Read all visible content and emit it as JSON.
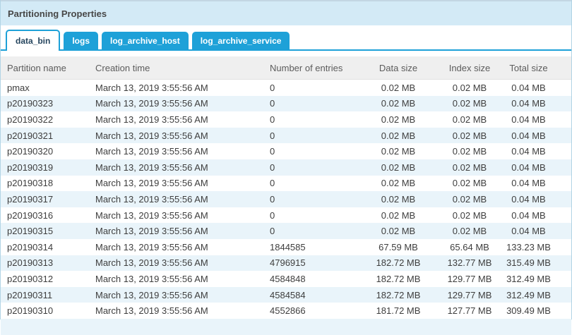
{
  "panel": {
    "title": "Partitioning Properties"
  },
  "tabs": [
    {
      "label": "data_bin",
      "active": true
    },
    {
      "label": "logs",
      "active": false
    },
    {
      "label": "log_archive_host",
      "active": false
    },
    {
      "label": "log_archive_service",
      "active": false
    }
  ],
  "table": {
    "columns": [
      "Partition name",
      "Creation time",
      "Number of entries",
      "Data size",
      "Index size",
      "Total size"
    ],
    "rows": [
      [
        "pmax",
        "March 13, 2019 3:55:56 AM",
        "0",
        "0.02 MB",
        "0.02 MB",
        "0.04 MB"
      ],
      [
        "p20190323",
        "March 13, 2019 3:55:56 AM",
        "0",
        "0.02 MB",
        "0.02 MB",
        "0.04 MB"
      ],
      [
        "p20190322",
        "March 13, 2019 3:55:56 AM",
        "0",
        "0.02 MB",
        "0.02 MB",
        "0.04 MB"
      ],
      [
        "p20190321",
        "March 13, 2019 3:55:56 AM",
        "0",
        "0.02 MB",
        "0.02 MB",
        "0.04 MB"
      ],
      [
        "p20190320",
        "March 13, 2019 3:55:56 AM",
        "0",
        "0.02 MB",
        "0.02 MB",
        "0.04 MB"
      ],
      [
        "p20190319",
        "March 13, 2019 3:55:56 AM",
        "0",
        "0.02 MB",
        "0.02 MB",
        "0.04 MB"
      ],
      [
        "p20190318",
        "March 13, 2019 3:55:56 AM",
        "0",
        "0.02 MB",
        "0.02 MB",
        "0.04 MB"
      ],
      [
        "p20190317",
        "March 13, 2019 3:55:56 AM",
        "0",
        "0.02 MB",
        "0.02 MB",
        "0.04 MB"
      ],
      [
        "p20190316",
        "March 13, 2019 3:55:56 AM",
        "0",
        "0.02 MB",
        "0.02 MB",
        "0.04 MB"
      ],
      [
        "p20190315",
        "March 13, 2019 3:55:56 AM",
        "0",
        "0.02 MB",
        "0.02 MB",
        "0.04 MB"
      ],
      [
        "p20190314",
        "March 13, 2019 3:55:56 AM",
        "1844585",
        "67.59 MB",
        "65.64 MB",
        "133.23 MB"
      ],
      [
        "p20190313",
        "March 13, 2019 3:55:56 AM",
        "4796915",
        "182.72 MB",
        "132.77 MB",
        "315.49 MB"
      ],
      [
        "p20190312",
        "March 13, 2019 3:55:56 AM",
        "4584848",
        "182.72 MB",
        "129.77 MB",
        "312.49 MB"
      ],
      [
        "p20190311",
        "March 13, 2019 3:55:56 AM",
        "4584584",
        "182.72 MB",
        "129.77 MB",
        "312.49 MB"
      ],
      [
        "p20190310",
        "March 13, 2019 3:55:56 AM",
        "4552866",
        "181.72 MB",
        "127.77 MB",
        "309.49 MB"
      ]
    ]
  },
  "colors": {
    "accent_cyan": "#1ea1d8",
    "title_bar_bg": "#d3eaf6",
    "title_bar_top_border": "#c3d6e3",
    "header_row_bg": "#efefef",
    "alt_row_bg": "#e9f4fa",
    "active_tab_text": "#25455e",
    "body_text": "#3e3e3e",
    "header_text": "#5c5c5c"
  }
}
